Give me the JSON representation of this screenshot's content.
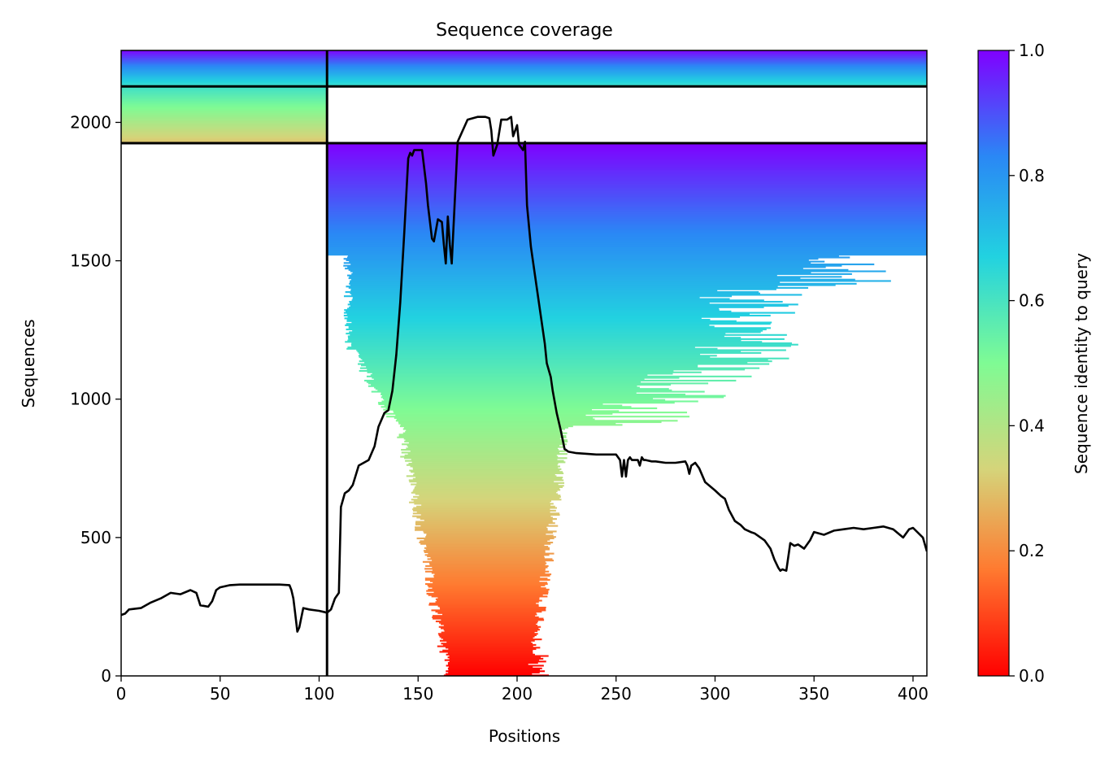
{
  "chart_data": {
    "type": "heatmap",
    "title": "Sequence coverage",
    "xlabel": "Positions",
    "ylabel": "Sequences",
    "xlim": [
      0,
      407
    ],
    "ylim": [
      0,
      2260
    ],
    "xticks": [
      0,
      50,
      100,
      150,
      200,
      250,
      300,
      350,
      400
    ],
    "yticks": [
      0,
      500,
      1000,
      1500,
      2000
    ],
    "colorbar": {
      "label": "Sequence identity to query",
      "range": [
        0.0,
        1.0
      ],
      "ticks": [
        "0.0",
        "0.2",
        "0.4",
        "0.6",
        "0.8",
        "1.0"
      ],
      "colormap": "rainbow"
    },
    "domain_boundaries": {
      "vertical_x": [
        104
      ],
      "horizontal_y": [
        1925,
        2130
      ]
    },
    "coverage_blocks": [
      {
        "name": "block-top",
        "x": [
          0,
          407
        ],
        "y": [
          2130,
          2260
        ],
        "identity": [
          0.62,
          1.0
        ]
      },
      {
        "name": "block-upper-left",
        "x": [
          0,
          104
        ],
        "y": [
          1925,
          2130
        ],
        "identity": [
          0.3,
          0.62
        ]
      },
      {
        "name": "block-main",
        "x": [
          104,
          407
        ],
        "y": [
          0,
          1925
        ],
        "identity": [
          0.0,
          1.0
        ]
      }
    ],
    "series": [
      {
        "type": "line",
        "color": "#000000",
        "x": [
          0,
          2,
          4,
          10,
          15,
          20,
          25,
          30,
          35,
          38,
          40,
          44,
          46,
          48,
          50,
          55,
          60,
          70,
          80,
          85,
          86,
          87,
          88,
          89,
          90,
          92,
          95,
          100,
          103,
          104,
          106,
          108,
          110,
          111,
          113,
          115,
          117,
          120,
          125,
          128,
          130,
          133,
          135,
          137,
          139,
          141,
          143,
          145,
          146,
          147,
          148,
          150,
          152,
          154,
          155,
          157,
          158,
          160,
          162,
          163,
          164,
          165,
          166,
          167,
          170,
          175,
          180,
          184,
          186,
          187,
          188,
          190,
          192,
          195,
          197,
          198,
          200,
          201,
          203,
          204,
          205,
          207,
          210,
          212,
          214,
          215,
          217,
          218,
          220,
          222,
          224,
          226,
          230,
          240,
          250,
          252,
          253,
          254,
          255,
          256,
          257,
          258,
          260,
          261,
          262,
          263,
          264,
          265,
          268,
          270,
          275,
          280,
          285,
          286,
          287,
          288,
          290,
          292,
          295,
          300,
          303,
          305,
          307,
          310,
          313,
          315,
          318,
          320,
          323,
          325,
          328,
          330,
          332,
          333,
          334,
          336,
          338,
          340,
          342,
          345,
          348,
          350,
          355,
          360,
          365,
          370,
          375,
          380,
          385,
          390,
          395,
          398,
          400,
          405,
          407
        ],
        "y": [
          220,
          225,
          240,
          245,
          265,
          280,
          300,
          295,
          310,
          300,
          255,
          250,
          270,
          310,
          320,
          328,
          330,
          330,
          330,
          328,
          310,
          280,
          220,
          160,
          175,
          245,
          240,
          235,
          230,
          228,
          240,
          280,
          300,
          610,
          660,
          670,
          690,
          760,
          780,
          830,
          900,
          950,
          960,
          1030,
          1160,
          1350,
          1600,
          1870,
          1890,
          1880,
          1900,
          1900,
          1900,
          1780,
          1700,
          1580,
          1570,
          1650,
          1640,
          1560,
          1490,
          1660,
          1560,
          1490,
          1930,
          2010,
          2020,
          2020,
          2015,
          1970,
          1880,
          1920,
          2010,
          2010,
          2020,
          1950,
          1990,
          1920,
          1900,
          1930,
          1700,
          1550,
          1400,
          1300,
          1200,
          1130,
          1080,
          1030,
          950,
          890,
          820,
          810,
          805,
          800,
          800,
          780,
          720,
          780,
          720,
          780,
          790,
          780,
          780,
          780,
          760,
          790,
          780,
          780,
          775,
          775,
          770,
          770,
          775,
          760,
          730,
          760,
          770,
          750,
          700,
          670,
          650,
          640,
          600,
          560,
          545,
          530,
          520,
          515,
          500,
          490,
          460,
          420,
          390,
          380,
          385,
          380,
          480,
          470,
          475,
          460,
          490,
          520,
          510,
          525,
          530,
          535,
          530,
          535,
          540,
          530,
          500,
          530,
          535,
          500,
          450
        ]
      }
    ]
  }
}
